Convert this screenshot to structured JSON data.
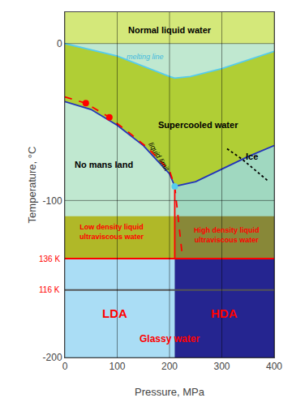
{
  "chart_data": {
    "type": "line",
    "xlabel": "Pressure, MPa",
    "ylabel": "Temperature, °C",
    "xlim": [
      0,
      400
    ],
    "ylim": [
      -200,
      20
    ],
    "xticks": [
      0,
      100,
      200,
      300,
      400
    ],
    "yticks": [
      -200,
      -100,
      0
    ],
    "grid": true,
    "series": [
      {
        "type": "fill",
        "color": "#c0e8d0",
        "x": [
          0,
          400,
          400,
          0
        ],
        "y": [
          -200,
          -200,
          20,
          20
        ]
      },
      {
        "type": "fill",
        "color": "#d4e87a",
        "x": [
          0,
          400,
          400,
          0
        ],
        "y": [
          0,
          0,
          20,
          20
        ]
      },
      {
        "type": "fill",
        "color": "#a0d8c0",
        "x": [
          210,
          240,
          300,
          400,
          400,
          210
        ],
        "y": [
          -22,
          -21,
          -16,
          -5,
          -200,
          -200
        ]
      },
      {
        "type": "fill",
        "color": "#b0ce35",
        "x": [
          0,
          50,
          100,
          150,
          200,
          210,
          250,
          300,
          350,
          400,
          400,
          300,
          240,
          210,
          200,
          100,
          0
        ],
        "y": [
          -37,
          -42,
          -52,
          -65,
          -83,
          -91,
          -88,
          -80,
          -72,
          -65,
          -5,
          -16,
          -21,
          -22,
          -21,
          -8,
          0
        ]
      },
      {
        "type": "fill",
        "color": "#b0b828",
        "x": [
          0,
          210,
          210,
          0
        ],
        "y": [
          -137,
          -137,
          -110,
          -110
        ]
      },
      {
        "type": "fill",
        "color": "#888838",
        "x": [
          210,
          400,
          400,
          210
        ],
        "y": [
          -137,
          -137,
          -110,
          -110
        ]
      },
      {
        "type": "fill",
        "color": "#aaddf5",
        "x": [
          0,
          210,
          210,
          0
        ],
        "y": [
          -200,
          -200,
          -137,
          -137
        ]
      },
      {
        "type": "fill",
        "color": "#252590",
        "x": [
          210,
          400,
          400,
          210
        ],
        "y": [
          -200,
          -200,
          -137,
          -137
        ]
      },
      {
        "type": "line",
        "color": "red",
        "line_style": "solid",
        "x": [
          0,
          400
        ],
        "y": [
          -137,
          -137
        ]
      },
      {
        "type": "line",
        "color": "red",
        "line_style": "solid",
        "x": [
          210,
          210
        ],
        "y": [
          -137,
          -91
        ]
      },
      {
        "type": "line",
        "color": "#555555",
        "line_style": "solid",
        "x": [
          0,
          400
        ],
        "y": [
          -157,
          -157
        ]
      },
      {
        "type": "line",
        "color": "#55ccee",
        "line_style": "solid",
        "x": [
          0,
          100,
          200,
          210,
          240,
          300,
          400
        ],
        "y": [
          0,
          -8,
          -21,
          -22,
          -21,
          -16,
          -5
        ]
      },
      {
        "type": "line",
        "color": "#2233bb",
        "line_style": "solid",
        "x": [
          0,
          50,
          100,
          150,
          200,
          210
        ],
        "y": [
          -37,
          -42,
          -52,
          -65,
          -83,
          -91
        ]
      },
      {
        "type": "line",
        "color": "#2233bb",
        "line_style": "solid",
        "x": [
          210,
          250,
          300,
          350,
          400
        ],
        "y": [
          -91,
          -88,
          -80,
          -72,
          -65
        ]
      },
      {
        "type": "line",
        "color": "black",
        "line_style": "dot",
        "x": [
          310,
          340,
          365,
          390
        ],
        "y": [
          -67,
          -74,
          -81,
          -88
        ]
      },
      {
        "type": "line",
        "color": "red",
        "line_style": "dash",
        "x": [
          0,
          40,
          80,
          120,
          160,
          200,
          210,
          213,
          216,
          220,
          225
        ],
        "y": [
          -34,
          -38,
          -46,
          -56,
          -67,
          -81,
          -91,
          -100,
          -110,
          -122,
          -137
        ]
      },
      {
        "type": "scatter",
        "color": "red",
        "marker": "circle",
        "x": [
          40,
          85
        ],
        "y": [
          -38,
          -47
        ]
      },
      {
        "type": "scatter",
        "color": "#55ccee",
        "marker": "circle",
        "x": [
          210
        ],
        "y": [
          -91
        ]
      }
    ],
    "annotations": [
      {
        "text": "Normal liquid water",
        "x": 200,
        "y": 13,
        "color": "black"
      },
      {
        "text": "Supercooled water",
        "x": 255,
        "y": -52,
        "color": "black"
      },
      {
        "text": "No mans land",
        "x": 75,
        "y": -77,
        "color": "black"
      },
      {
        "text": "Ice",
        "x": 358,
        "y": -72,
        "color": "black"
      },
      {
        "text": "melting line",
        "x": 115,
        "y": -12,
        "color": "#44bbdd"
      },
      {
        "text": "liquid limit",
        "x": 152,
        "y": -72,
        "color": "black"
      },
      {
        "text": "Low density liquid\nultraviscous water",
        "x": 90,
        "y": -120,
        "color": "red"
      },
      {
        "text": "High density liquid\nultraviscous water",
        "x": 310,
        "y": -122,
        "color": "red"
      },
      {
        "text": "LDA",
        "x": 95,
        "y": -172,
        "color": "red"
      },
      {
        "text": "HDA",
        "x": 305,
        "y": -172,
        "color": "red"
      },
      {
        "text": "Glassy water",
        "x": 200,
        "y": -188,
        "color": "red"
      },
      {
        "text": "136 K",
        "y": -137,
        "color": "red"
      },
      {
        "text": "116 K",
        "y": -157,
        "color": "red"
      }
    ]
  }
}
